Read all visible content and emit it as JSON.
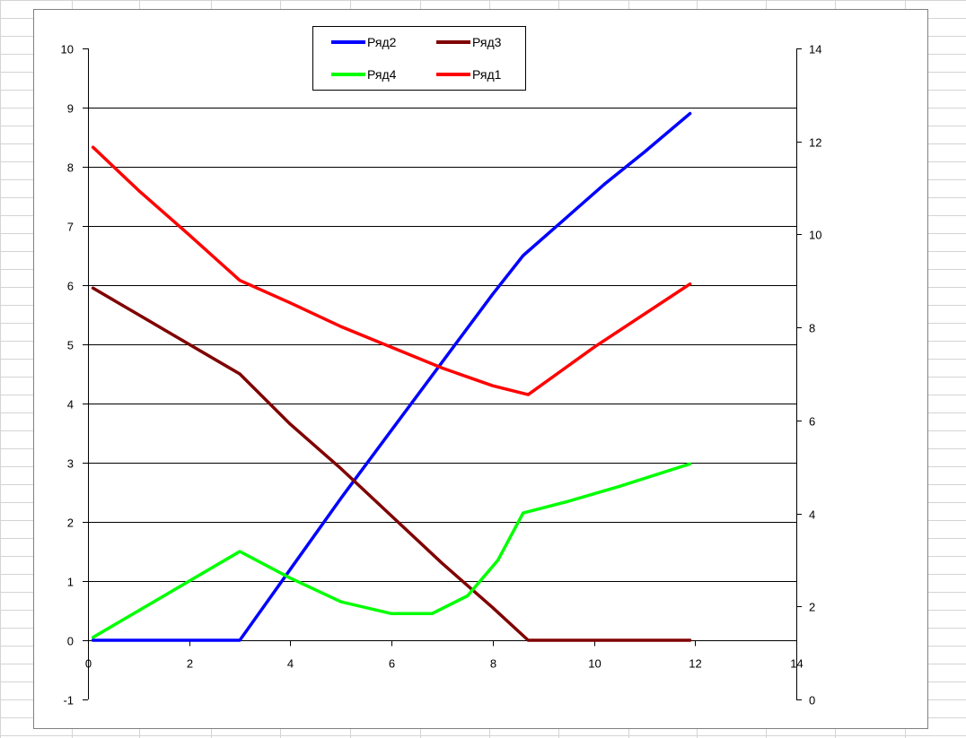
{
  "chart_data": {
    "type": "line",
    "title": "",
    "xlabel": "",
    "ylabel": "",
    "x_axis": {
      "min": 0,
      "max": 14,
      "ticks": [
        "0",
        "2",
        "4",
        "6",
        "8",
        "10",
        "12",
        "14"
      ]
    },
    "y_axis_left": {
      "min": -1,
      "max": 10,
      "ticks": [
        "-1",
        "0",
        "1",
        "2",
        "3",
        "4",
        "5",
        "6",
        "7",
        "8",
        "9",
        "10"
      ]
    },
    "y_axis_right": {
      "min": 0,
      "max": 14,
      "ticks": [
        "0",
        "2",
        "4",
        "6",
        "8",
        "10",
        "12",
        "14"
      ]
    },
    "gridlines": "horizontal major, left axis",
    "legend_position": "top",
    "series": [
      {
        "name": "Ряд2",
        "color": "#0000ff",
        "axis": "left",
        "points": [
          [
            0.1,
            0
          ],
          [
            3,
            0
          ],
          [
            4,
            1.2
          ],
          [
            5,
            2.4
          ],
          [
            6,
            3.55
          ],
          [
            7,
            4.7
          ],
          [
            8,
            5.85
          ],
          [
            8.6,
            6.5
          ],
          [
            9.4,
            7.1
          ],
          [
            10.2,
            7.7
          ],
          [
            11,
            8.25
          ],
          [
            11.9,
            8.9
          ]
        ]
      },
      {
        "name": "Ряд3",
        "color": "#800000",
        "axis": "left",
        "points": [
          [
            0.1,
            5.95
          ],
          [
            1,
            5.5
          ],
          [
            2,
            5.0
          ],
          [
            3,
            4.5
          ],
          [
            4,
            3.65
          ],
          [
            5,
            2.9
          ],
          [
            6,
            2.1
          ],
          [
            7,
            1.3
          ],
          [
            8,
            0.55
          ],
          [
            8.7,
            0
          ],
          [
            11.9,
            0
          ]
        ]
      },
      {
        "name": "Ряд4",
        "color": "#00ff00",
        "axis": "left",
        "points": [
          [
            0.1,
            0.05
          ],
          [
            1,
            0.5
          ],
          [
            2,
            1.0
          ],
          [
            3,
            1.5
          ],
          [
            4,
            1.05
          ],
          [
            5,
            0.65
          ],
          [
            6,
            0.45
          ],
          [
            6.8,
            0.45
          ],
          [
            7.5,
            0.75
          ],
          [
            8.1,
            1.35
          ],
          [
            8.6,
            2.15
          ],
          [
            9.5,
            2.35
          ],
          [
            10.5,
            2.6
          ],
          [
            11.9,
            2.98
          ]
        ]
      },
      {
        "name": "Ряд1",
        "color": "#ff0000",
        "axis": "left",
        "points": [
          [
            0.1,
            8.33
          ],
          [
            1,
            7.6
          ],
          [
            2,
            6.85
          ],
          [
            3,
            6.08
          ],
          [
            4,
            5.7
          ],
          [
            5,
            5.3
          ],
          [
            6,
            4.95
          ],
          [
            7,
            4.6
          ],
          [
            8,
            4.3
          ],
          [
            8.7,
            4.15
          ],
          [
            10,
            4.95
          ],
          [
            11.9,
            6.02
          ]
        ]
      }
    ]
  }
}
